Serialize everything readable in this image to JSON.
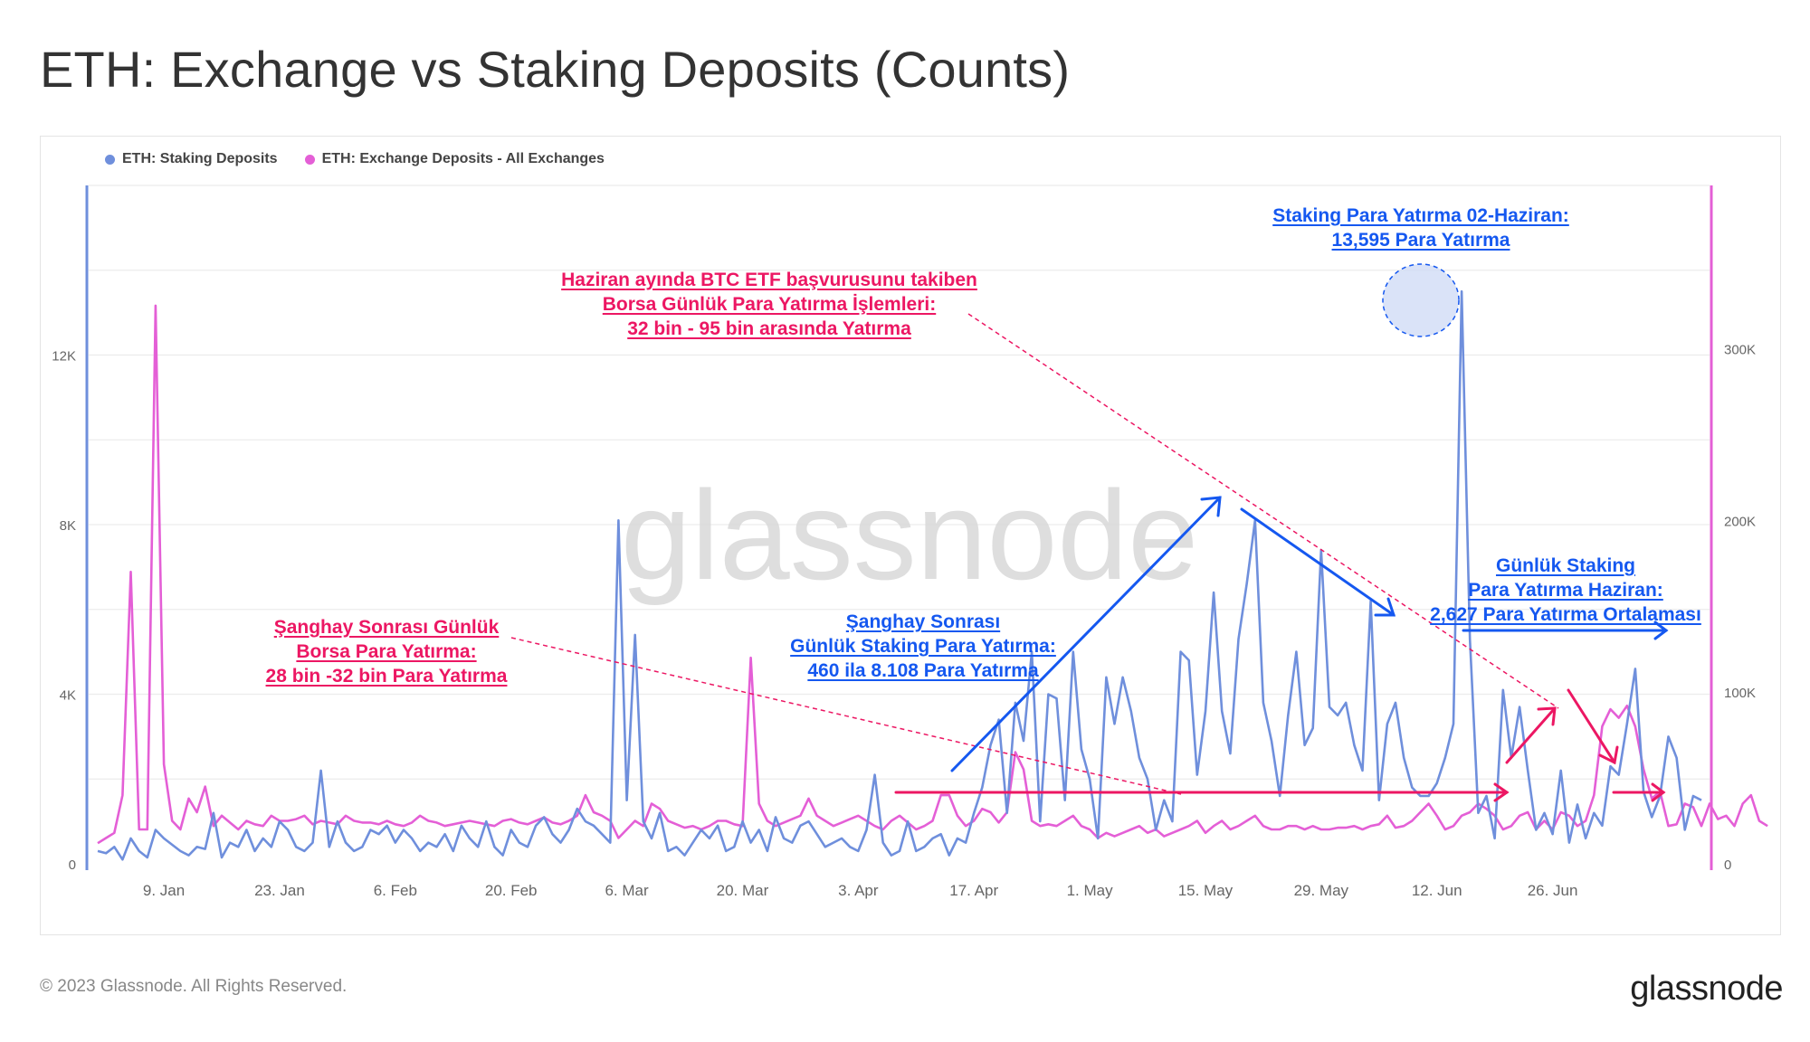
{
  "title": "ETH: Exchange vs Staking Deposits (Counts)",
  "footer": {
    "copyright": "© 2023 Glassnode. All Rights Reserved.",
    "logo": "glassnode"
  },
  "watermark": "glassnode",
  "colors": {
    "staking": "#6f8fdc",
    "exchange": "#e45fd6",
    "annotation_pink": "#ec1763",
    "annotation_blue": "#1558f0"
  },
  "annotations": {
    "exchange_june": [
      "Haziran ayında BTC ETF başvurusunu takiben",
      "Borsa Günlük Para Yatırma İşlemleri:",
      "32 bin - 95 bin arasında Yatırma"
    ],
    "staking_peak": [
      "Staking Para Yatırma 02-Haziran:",
      "13,595 Para Yatırma"
    ],
    "shanghai_exchange": [
      "Şanghay Sonrası Günlük",
      "Borsa Para Yatırma:",
      "28 bin -32 bin Para Yatırma"
    ],
    "shanghai_staking": [
      "Şanghay Sonrası",
      "Günlük Staking Para Yatırma:",
      "460 ila 8.108 Para Yatırma"
    ],
    "june_staking": [
      "Günlük Staking",
      "Para Yatırma Haziran:",
      "2,627 Para Yatırma Ortalaması"
    ]
  },
  "chart_data": {
    "type": "line",
    "legend": [
      "ETH: Staking Deposits",
      "ETH: Exchange Deposits - All Exchanges"
    ],
    "legend_position": "top-left",
    "grid": true,
    "x_start": "2023-01-01",
    "x_ticks": [
      "9. Jan",
      "23. Jan",
      "6. Feb",
      "20. Feb",
      "6. Mar",
      "20. Mar",
      "3. Apr",
      "17. Apr",
      "1. May",
      "15. May",
      "29. May",
      "12. Jun",
      "26. Jun"
    ],
    "y_left": {
      "ticks": [
        "0",
        "4K",
        "8K",
        "12K"
      ],
      "range": [
        0,
        16000
      ]
    },
    "y_right": {
      "ticks": [
        "0",
        "100K",
        "200K",
        "300K"
      ],
      "range": [
        0,
        395000
      ]
    },
    "series": [
      {
        "name": "ETH: Staking Deposits",
        "axis": "left",
        "values": [
          300,
          250,
          400,
          100,
          600,
          300,
          150,
          800,
          600,
          450,
          300,
          200,
          400,
          350,
          1200,
          150,
          500,
          400,
          800,
          300,
          600,
          400,
          1000,
          800,
          400,
          300,
          500,
          2200,
          400,
          1000,
          500,
          300,
          400,
          800,
          700,
          900,
          500,
          800,
          600,
          300,
          500,
          400,
          700,
          300,
          900,
          600,
          400,
          1000,
          400,
          200,
          800,
          500,
          400,
          900,
          1100,
          700,
          500,
          800,
          1300,
          1000,
          900,
          700,
          500,
          8100,
          1500,
          5400,
          1000,
          600,
          1200,
          300,
          400,
          200,
          500,
          800,
          600,
          900,
          300,
          400,
          1000,
          500,
          800,
          300,
          1100,
          600,
          500,
          900,
          1000,
          700,
          400,
          500,
          600,
          400,
          300,
          800,
          2100,
          500,
          200,
          300,
          1000,
          300,
          400,
          600,
          700,
          200,
          600,
          500,
          1200,
          1800,
          2800,
          3400,
          1200,
          3800,
          2900,
          5000,
          1000,
          4000,
          3900,
          1500,
          5000,
          2700,
          2000,
          600,
          4400,
          3300,
          4400,
          3600,
          2500,
          2000,
          800,
          1500,
          1000,
          5000,
          4800,
          2100,
          3600,
          6400,
          3600,
          2600,
          5300,
          6600,
          8100,
          3800,
          2900,
          1600,
          3500,
          5000,
          2800,
          3200,
          7400,
          3700,
          3500,
          3800,
          2800,
          2200,
          6200,
          1500,
          3300,
          3800,
          2500,
          1800,
          1600,
          1600,
          1900,
          2500,
          3300,
          13500,
          5300,
          1200,
          1600,
          600,
          4100,
          2500,
          3700,
          2200,
          800,
          1200,
          700,
          2200,
          500,
          1400,
          600,
          1200,
          900,
          2300,
          2100,
          3300,
          4600,
          1700,
          1100,
          1600,
          3000,
          2500,
          800,
          1600,
          1500
        ]
      },
      {
        "name": "ETH: Exchange Deposits - All Exchanges",
        "axis": "right",
        "values": [
          12000,
          15000,
          18000,
          40000,
          170000,
          20000,
          20000,
          325000,
          58000,
          25000,
          20000,
          38000,
          30000,
          45000,
          22000,
          28000,
          24000,
          20000,
          25000,
          23000,
          22000,
          28000,
          25000,
          25000,
          26000,
          28000,
          23000,
          25000,
          24000,
          23000,
          28000,
          25000,
          24000,
          24000,
          23000,
          25000,
          23000,
          22000,
          24000,
          28000,
          25000,
          24000,
          22000,
          23000,
          24000,
          25000,
          24000,
          23000,
          22000,
          25000,
          26000,
          24000,
          23000,
          25000,
          27000,
          24000,
          23000,
          25000,
          28000,
          40000,
          30000,
          28000,
          25000,
          15000,
          20000,
          25000,
          22000,
          35000,
          32000,
          25000,
          23000,
          21000,
          22000,
          20000,
          22000,
          25000,
          25000,
          23000,
          22000,
          120000,
          35000,
          25000,
          22000,
          24000,
          26000,
          28000,
          38000,
          28000,
          25000,
          22000,
          24000,
          26000,
          28000,
          25000,
          22000,
          20000,
          25000,
          28000,
          24000,
          20000,
          22000,
          25000,
          40000,
          40000,
          28000,
          22000,
          25000,
          32000,
          30000,
          24000,
          30000,
          65000,
          55000,
          25000,
          22000,
          23000,
          22000,
          25000,
          28000,
          22000,
          20000,
          15000,
          18000,
          16000,
          18000,
          20000,
          22000,
          18000,
          20000,
          16000,
          18000,
          20000,
          22000,
          25000,
          18000,
          22000,
          25000,
          20000,
          22000,
          25000,
          28000,
          22000,
          20000,
          20000,
          22000,
          22000,
          20000,
          22000,
          20000,
          20000,
          21000,
          21000,
          22000,
          20000,
          22000,
          23000,
          28000,
          21000,
          22000,
          25000,
          30000,
          35000,
          28000,
          20000,
          22000,
          28000,
          30000,
          35000,
          32000,
          28000,
          20000,
          22000,
          28000,
          30000,
          20000,
          25000,
          20000,
          30000,
          28000,
          22000,
          25000,
          40000,
          80000,
          90000,
          85000,
          92000,
          80000,
          55000,
          38000,
          42000,
          22000,
          23000,
          35000,
          33000,
          22000,
          35000,
          26000,
          28000,
          22000,
          35000,
          40000,
          25000,
          22000
        ]
      }
    ]
  }
}
